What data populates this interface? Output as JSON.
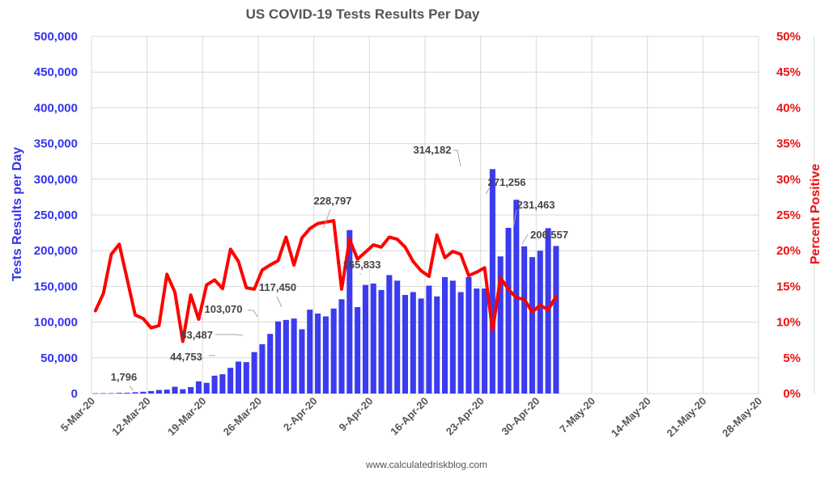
{
  "chart_data": {
    "type": "bar+line",
    "title": "US COVID-19 Tests Results Per Day",
    "ylabel_left": "Tests Results per Day",
    "ylabel_right": "Percent Positive",
    "ylim_left": [
      0,
      500000
    ],
    "ylim_right": [
      0,
      50
    ],
    "yticks_left": [
      "0",
      "50,000",
      "100,000",
      "150,000",
      "200,000",
      "250,000",
      "300,000",
      "350,000",
      "400,000",
      "450,000",
      "500,000"
    ],
    "yticks_right": [
      "0%",
      "5%",
      "10%",
      "15%",
      "20%",
      "25%",
      "30%",
      "35%",
      "40%",
      "45%",
      "50%"
    ],
    "x_tick_labels": [
      "5-Mar-20",
      "12-Mar-20",
      "19-Mar-20",
      "26-Mar-20",
      "2-Apr-20",
      "9-Apr-20",
      "16-Apr-20",
      "23-Apr-20",
      "30-Apr-20",
      "7-May-20",
      "14-May-20",
      "21-May-20",
      "28-May-20"
    ],
    "x_start_date": "5-Mar-20",
    "x_days": 84,
    "series": [
      {
        "name": "Tests Results per Day",
        "kind": "bar",
        "color": "#3b3bf0",
        "values": [
          300,
          400,
          500,
          1000,
          1100,
          1796,
          2500,
          3500,
          5000,
          5500,
          9500,
          6000,
          9000,
          17000,
          15000,
          25000,
          27000,
          36000,
          44753,
          44000,
          58000,
          69000,
          83487,
          101000,
          103070,
          105000,
          90000,
          117450,
          112000,
          108000,
          119000,
          132000,
          228797,
          121000,
          152000,
          154000,
          145000,
          165833,
          158000,
          138000,
          142000,
          133000,
          151000,
          136000,
          163000,
          158000,
          142000,
          163000,
          147000,
          147000,
          314182,
          192000,
          232000,
          271256,
          206000,
          191000,
          200000,
          231463,
          206557
        ]
      },
      {
        "name": "Percent Positive",
        "kind": "line",
        "color": "#ff0000",
        "axis": "right",
        "values": [
          11.6,
          14.0,
          19.5,
          20.9,
          16.0,
          11.0,
          10.5,
          9.2,
          9.5,
          16.7,
          14.2,
          7.3,
          13.8,
          10.4,
          15.2,
          15.9,
          14.7,
          20.2,
          18.5,
          14.8,
          14.6,
          17.3,
          18.0,
          18.6,
          21.9,
          18.0,
          21.8,
          23.1,
          23.8,
          24.0,
          24.2,
          14.6,
          21.6,
          18.8,
          19.8,
          20.8,
          20.5,
          21.9,
          21.6,
          20.5,
          18.5,
          17.2,
          16.4,
          22.2,
          19.0,
          19.9,
          19.5,
          16.5,
          17.0,
          17.6,
          8.8,
          16.2,
          14.6,
          13.4,
          13.2,
          11.4,
          12.4,
          11.7,
          13.6
        ]
      }
    ],
    "annotations": [
      {
        "label": "1,796",
        "index": 5
      },
      {
        "label": "44,753",
        "index": 18
      },
      {
        "label": "83,487",
        "index": 22
      },
      {
        "label": "103,070",
        "index": 24
      },
      {
        "label": "117,450",
        "index": 27
      },
      {
        "label": "228,797",
        "index": 32
      },
      {
        "label": "165,833",
        "index": 37
      },
      {
        "label": "314,182",
        "index": 50
      },
      {
        "label": "271,256",
        "index": 53
      },
      {
        "label": "231,463",
        "index": 57
      },
      {
        "label": "206,557",
        "index": 58
      }
    ],
    "source": "www.calculatedriskblog.com"
  }
}
